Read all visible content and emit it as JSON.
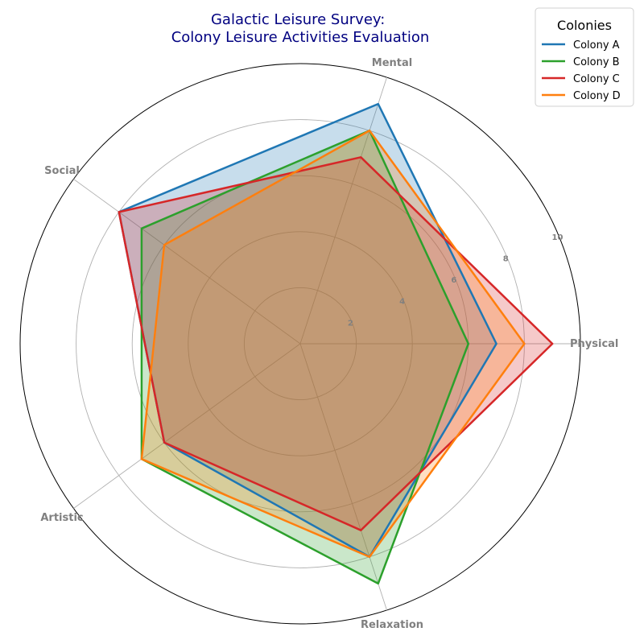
{
  "chart_data": {
    "type": "radar",
    "title_lines": [
      "Galactic Leisure Survey:",
      "Colony Leisure Activities Evaluation"
    ],
    "axes": [
      "Physical",
      "Mental",
      "Social",
      "Artistic",
      "Relaxation"
    ],
    "rmax": 10,
    "rticks": [
      2,
      4,
      6,
      8,
      10
    ],
    "legend": {
      "title": "Colonies",
      "placement": "top-right"
    },
    "grid": true,
    "series": [
      {
        "name": "Colony A",
        "color": "#1f77b4",
        "values": [
          7,
          9,
          8,
          6,
          8
        ]
      },
      {
        "name": "Colony B",
        "color": "#2ca02c",
        "values": [
          6,
          8,
          7,
          7,
          9
        ]
      },
      {
        "name": "Colony C",
        "color": "#d62728",
        "values": [
          9,
          7,
          8,
          6,
          7
        ]
      },
      {
        "name": "Colony D",
        "color": "#ff7f0e",
        "values": [
          8,
          8,
          6,
          7,
          8
        ]
      }
    ]
  }
}
